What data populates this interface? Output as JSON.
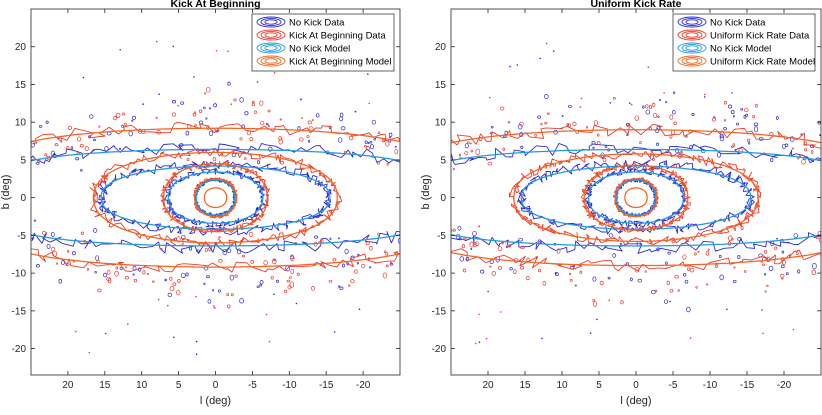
{
  "chart_data": [
    {
      "type": "contour",
      "title": "Kick At Beginning",
      "xlabel": "l (deg)",
      "ylabel": "b (deg)",
      "xlim": [
        25,
        -25
      ],
      "ylim": [
        -23.5,
        25
      ],
      "xticks": [
        20,
        15,
        10,
        5,
        0,
        -5,
        -10,
        -15,
        -20
      ],
      "yticks": [
        20,
        15,
        10,
        5,
        0,
        -5,
        -10,
        -15,
        -20
      ],
      "legend": {
        "placement": "top-right",
        "entries": [
          {
            "label": "No Kick Data",
            "color": "#2b2bd6"
          },
          {
            "label": "Kick At Beginning Data",
            "color": "#ee3b2b"
          },
          {
            "label": "No Kick Model",
            "color": "#1f9be0"
          },
          {
            "label": "Kick At Beginning Model",
            "color": "#f26522"
          }
        ]
      },
      "series": [
        {
          "name": "No Kick Data",
          "color": "#2b2bd6",
          "style": "noisy",
          "levels": [
            {
              "a": 2.6,
              "b": 2.3
            },
            {
              "a": 6.5,
              "b": 3.5
            },
            {
              "a": 15.5,
              "b": 4.4
            },
            {
              "a": 30,
              "b": 6.6
            }
          ]
        },
        {
          "name": "Kick At Beginning Data",
          "color": "#ee3b2b",
          "style": "noisy",
          "levels": [
            {
              "a": 2.8,
              "b": 2.5
            },
            {
              "a": 7.0,
              "b": 4.4
            },
            {
              "a": 16.5,
              "b": 6.0
            },
            {
              "a": 32,
              "b": 9.3
            }
          ]
        },
        {
          "name": "No Kick Model",
          "color": "#1f9be0",
          "style": "smooth",
          "levels": [
            {
              "a": 2.6,
              "b": 2.3
            },
            {
              "a": 6.4,
              "b": 3.4
            },
            {
              "a": 15.5,
              "b": 4.2
            },
            {
              "a": 30,
              "b": 6.4
            }
          ]
        },
        {
          "name": "Kick At Beginning Model",
          "color": "#f26522",
          "style": "smooth",
          "levels": [
            {
              "a": 1.5,
              "b": 1.3
            },
            {
              "a": 2.8,
              "b": 2.5
            },
            {
              "a": 7.0,
              "b": 4.5
            },
            {
              "a": 16.5,
              "b": 6.0
            },
            {
              "a": 32,
              "b": 9.2
            }
          ]
        }
      ]
    },
    {
      "type": "contour",
      "title": "Uniform Kick Rate",
      "xlabel": "l (deg)",
      "ylabel": "b (deg)",
      "xlim": [
        25,
        -25
      ],
      "ylim": [
        -23.5,
        25
      ],
      "xticks": [
        20,
        15,
        10,
        5,
        0,
        -5,
        -10,
        -15,
        -20
      ],
      "yticks": [
        20,
        15,
        10,
        5,
        0,
        -5,
        -10,
        -15,
        -20
      ],
      "legend": {
        "placement": "top-right",
        "entries": [
          {
            "label": "No Kick Data",
            "color": "#2b2bd6"
          },
          {
            "label": "Uniform Kick Rate Data",
            "color": "#ee3b2b"
          },
          {
            "label": "No Kick Model",
            "color": "#1f9be0"
          },
          {
            "label": "Uniform Kick Rate Model",
            "color": "#f26522"
          }
        ]
      },
      "series": [
        {
          "name": "No Kick Data",
          "color": "#2b2bd6",
          "style": "noisy",
          "levels": [
            {
              "a": 2.6,
              "b": 2.3
            },
            {
              "a": 6.5,
              "b": 3.5
            },
            {
              "a": 15.5,
              "b": 4.4
            },
            {
              "a": 30,
              "b": 6.6
            }
          ]
        },
        {
          "name": "Uniform Kick Rate Data",
          "color": "#ee3b2b",
          "style": "noisy",
          "levels": [
            {
              "a": 2.8,
              "b": 2.5
            },
            {
              "a": 7.0,
              "b": 4.2
            },
            {
              "a": 16.5,
              "b": 5.8
            },
            {
              "a": 32,
              "b": 9.0
            }
          ]
        },
        {
          "name": "No Kick Model",
          "color": "#1f9be0",
          "style": "smooth",
          "levels": [
            {
              "a": 2.6,
              "b": 2.3
            },
            {
              "a": 6.4,
              "b": 3.4
            },
            {
              "a": 15.5,
              "b": 4.2
            },
            {
              "a": 30,
              "b": 6.4
            }
          ]
        },
        {
          "name": "Uniform Kick Rate Model",
          "color": "#f26522",
          "style": "smooth",
          "levels": [
            {
              "a": 1.5,
              "b": 1.3
            },
            {
              "a": 2.8,
              "b": 2.5
            },
            {
              "a": 7.0,
              "b": 4.3
            },
            {
              "a": 16.5,
              "b": 5.8
            },
            {
              "a": 32,
              "b": 9.0
            }
          ]
        }
      ]
    }
  ]
}
